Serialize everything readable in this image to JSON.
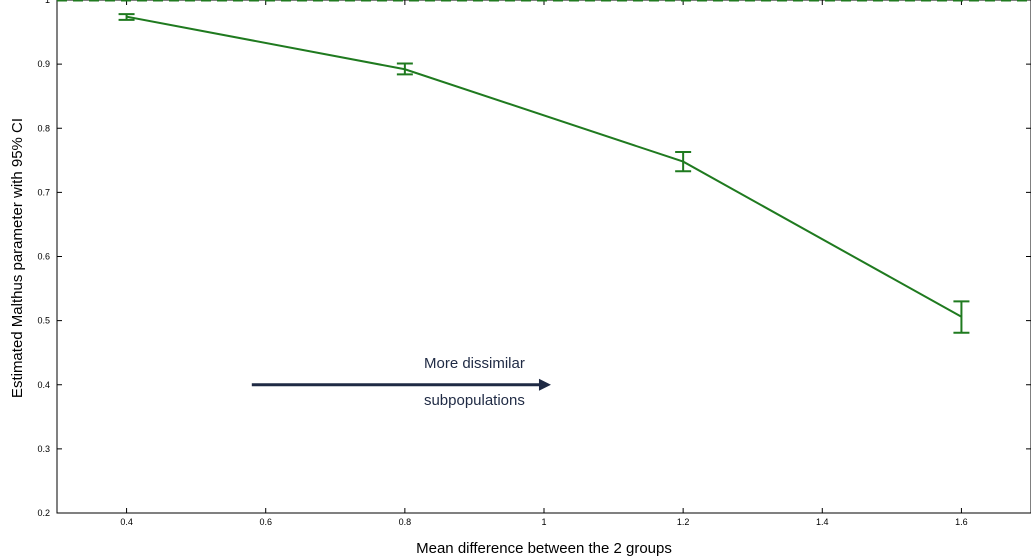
{
  "chart_data": {
    "type": "line",
    "title": "",
    "xlabel": "Mean difference between the 2 groups",
    "ylabel": "Estimated Malthus parameter with 95% CI",
    "xlim": [
      0.3,
      1.7
    ],
    "ylim": [
      0.2,
      1.0
    ],
    "grid": false,
    "x_ticks": [
      0.4,
      0.6,
      0.8,
      1,
      1.2,
      1.4,
      1.6
    ],
    "x_tick_labels": [
      "0.4",
      "0.6",
      "0.8",
      "1",
      "1.2",
      "1.4",
      "1.6"
    ],
    "y_ticks": [
      0.2,
      0.3,
      0.4,
      0.5,
      0.6,
      0.7,
      0.8,
      0.9,
      1
    ],
    "y_tick_labels": [
      "0.2",
      "0.3",
      "0.4",
      "0.5",
      "0.6",
      "0.7",
      "0.8",
      "0.9",
      "1"
    ],
    "series": [
      {
        "x": [
          0.4,
          0.8,
          1.2,
          1.6
        ],
        "y": [
          0.974,
          0.892,
          0.748,
          0.506
        ],
        "ci_low": [
          0.969,
          0.884,
          0.733,
          0.481
        ],
        "ci_high": [
          0.978,
          0.901,
          0.763,
          0.53
        ],
        "color": "#1f7a1f"
      }
    ],
    "reference_line": {
      "y": 1.0,
      "style": "dashed",
      "color": "#1f7a1f"
    },
    "annotation": {
      "lines": [
        "More dissimilar",
        "subpopulations"
      ],
      "arrow_from": [
        0.58,
        0.4
      ],
      "arrow_to": [
        1.01,
        0.4
      ],
      "text_x": 0.9,
      "text_y": [
        0.434,
        0.376
      ],
      "color": "#1f2a44"
    }
  }
}
